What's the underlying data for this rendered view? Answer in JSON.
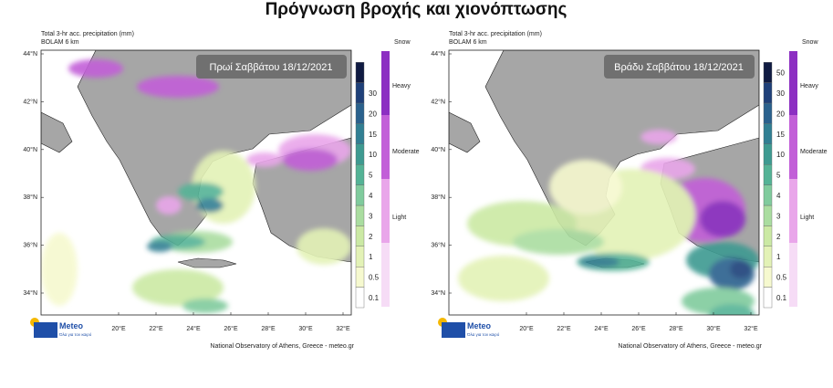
{
  "title": "Πρόγνωση βροχής και χιονόπτωσης",
  "panels": [
    {
      "header": [
        "Total 3-hr acc. precipitation (mm)",
        "BOLAM 6 km"
      ],
      "label": "Πρωί Σαββάτου 18/12/2021",
      "lat_labels": [
        "44°N",
        "42°N",
        "40°N",
        "38°N",
        "36°N",
        "34°N"
      ],
      "lon_labels": [
        "20°E",
        "22°E",
        "24°E",
        "26°E",
        "28°E",
        "30°E",
        "32°E"
      ],
      "rain_scale": [
        "30",
        "20",
        "15",
        "10",
        "5",
        "4",
        "3",
        "2",
        "1",
        "0.5",
        "0.1"
      ],
      "snow_scale": {
        "title": "Snow",
        "levels": [
          "Heavy",
          "Moderate",
          "Light"
        ]
      },
      "logo": {
        "name": "Meteo",
        "tagline": "Όλα για τον καιρό"
      },
      "credit": "National Observatory of Athens, Greece - meteo.gr"
    },
    {
      "header": [
        "Total 3-hr acc. precipitation (mm)",
        "BOLAM 6 km"
      ],
      "label": "Βράδυ Σαββάτου 18/12/2021",
      "lat_labels": [
        "44°N",
        "42°N",
        "40°N",
        "38°N",
        "36°N",
        "34°N"
      ],
      "lon_labels": [
        "20°E",
        "22°E",
        "24°E",
        "26°E",
        "28°E",
        "30°E",
        "32°E"
      ],
      "rain_scale": [
        "50",
        "30",
        "20",
        "15",
        "10",
        "5",
        "4",
        "3",
        "2",
        "1",
        "0.5",
        "0.1"
      ],
      "snow_scale": {
        "title": "Snow",
        "levels": [
          "Heavy",
          "Moderate",
          "Light"
        ]
      },
      "logo": {
        "name": "Meteo",
        "tagline": "Όλα για τον καιρό"
      },
      "credit": "National Observatory of Athens, Greece - meteo.gr"
    }
  ]
}
